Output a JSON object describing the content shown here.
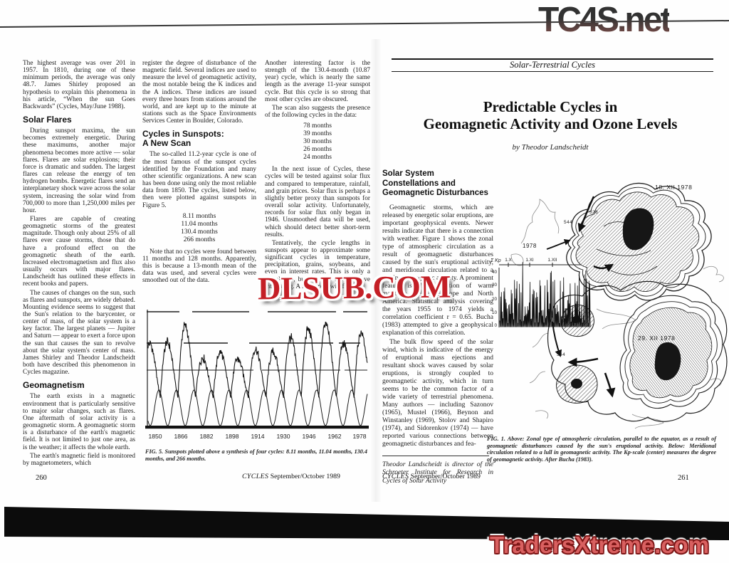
{
  "watermarks": {
    "tc4s": "TC4S.net",
    "dlsub": "DLSUB.COM",
    "traders": "TradersXtreme.com"
  },
  "leftPage": {
    "pageNumber": "260",
    "footerMag": "CYCLES",
    "footerRest": "September/October 1989",
    "col1": {
      "p1": "The highest average was over 201 in 1957. In 1810, during one of these minimum periods, the average was only 48.7. James Shirley proposed an hypothesis to explain this phenomena in his article, “When the sun Goes Backwards” (Cycles, May/June 1988).",
      "h1": "Solar Flares",
      "p2": "During sunspot maxima, the sun becomes extremely energetic. During these maximums, another major phenomena becomes more active — solar flares. Flares are solar explosions; their force is dramatic and sudden. The largest flares can release the energy of ten hydrogen bombs. Energetic flares send an interplanetary shock wave across the solar system, increasing the solar wind from 700,000 to more than 1,250,000 miles per hour.",
      "p3": "Flares are capable of creating geomagnetic storms of the greatest magnitude. Though only about 25% of all flares ever cause storms, those that do have a profound effect on the geomagnetic sheath of the earth. Increased electromagnetism and flux also usually occurs with major flares. Landscheidt has outlined these effects in recent books and papers.",
      "p4": "The causes of changes on the sun, such as flares and sunspots, are widely debated. Mounting evidence seems to suggest that the Sun's relation to the barycenter, or center of mass, of the solar system is a key factor. The largest planets — Jupiter and Saturn — appear to exert a force upon the sun that causes the sun to revolve about the solar system's center of mass. James Shirley and Theodor Landscheidt both have described this phenomenon in Cycles magazine.",
      "h2": "Geomagnetism",
      "p5": "The earth exists in a magnetic environment that is particularly sensitive to major solar changes, such as flares. One aftermath of solar activity is a geomagnetic storm. A geomagnetic storm is a disturbance of the earth's magnetic field. It is not limited to just one area, as is the weather; it affects the whole earth.",
      "p6": "The earth's magnetic field is monitored by magnetometers, which"
    },
    "col2": {
      "p1": "register the degree of disturbance of the magnetic field. Several indices are used to measure the level of geomagnetic activity, the most notable being the K indices and the A indices. These indices are issued every three hours from stations around the world, and are kept up to the minute at stations such as the Space Environments Services Center in Boulder, Colorado.",
      "h1a": "Cycles in Sunspots:",
      "h1b": "A New Scan",
      "p2": "The so-called 11.2-year cycle is one of the most famous of the sunspot cycles identified by the Foundation and many other scientific organizations. A new scan has been done using only the most reliable data from 1850. The cycles, listed below, then were plotted against sunspots in Figure 5.",
      "cycles": [
        "8.11 months",
        "11.04 months",
        "130.4 months",
        "266 months"
      ],
      "p3": "Note that no cycles were found between 11 months and 128 months. Apparently, this is because a 13-month mean of the data was used, and several cycles were smoothed out of the data."
    },
    "col3": {
      "p1": "Another interesting factor is the strength of the 130.4-month (10.87 year) cycle, which is nearly the same length as the average 11-year sunspot cycle. But this cycle is so strong that most other cycles are obscured.",
      "p2": "The scan also suggests the presence of the following cycles in the data:",
      "cycles": [
        "78 months",
        "39 months",
        "30 months",
        "26 months",
        "24 months"
      ],
      "p3": "In the next issue of Cycles, these cycles will be tested against solar flux and compared to temperature, rainfall, and grain prices. Solar flux is perhaps a slightly better proxy than sunspots for overall solar activity. Unfortunately, records for solar flux only began in 1946. Unsmoothed data will be used, which should detect better short-term results.",
      "p4": "Tentatively, the cycle lengths in sunspots appear to approximate some significant cycles in temperature, precipitation, grains, soybeans, and even in interest rates. This is only a correlation, but one that should prove interesting. A full report will follow."
    },
    "fig5": {
      "caption": "FIG. 5. Sunspots plotted above a synthesis of four cycles: 8.11 months, 11.04 months, 130.4 months, and 266 months.",
      "xTicks": [
        "1850",
        "1866",
        "1882",
        "1898",
        "1914",
        "1930",
        "1946",
        "1962",
        "1978"
      ]
    }
  },
  "rightPage": {
    "pageNumber": "261",
    "kicker": "Solar-Terrestrial Cycles",
    "titleLine1": "Predictable Cycles in",
    "titleLine2": "Geomagnetic Activity and Ozone Levels",
    "byline": "by Theodor Landscheidt",
    "footerMag": "CYCLES",
    "footerRest": "September/October 1989",
    "col1": {
      "h1a": "Solar System",
      "h1b": "Constellations and",
      "h1c": "Geomagnetic Disturbances",
      "p1": "Geomagnetic storms, which are released by energetic solar eruptions, are important geophysical events. Newer results indicate that there is a connection with weather. Figure 1 shows the zonal type of atmospheric circulation as a result of geomagnetic disturbances caused by the sun's eruptional activity, and meridional circulation related to a lull in geomagnetic activity. A prominent feature is the advection of warm maritime air over Europe and North America. Statistical analysis covering the years 1955 to 1974 yields a correlation coefficient r = 0.65. Bucha (1983) attempted to give a geophysical explanation of this correlation.",
      "p2": "The bulk flow speed of the solar wind, which is indicative of the energy of eruptional mass ejections and resultant shock waves caused by solar eruptions, is strongly coupled to geomagnetic activity, which in turn seems to be the common factor of a wide variety of terrestrial phenomena. Many authors — including Sazonov (1965), Mustel (1966), Beynon and Winstanley (1969), Stolov and Shapiro (1974), and Sidorenkov (1974) — have reported various connections between geomagnetic disturbances and fea-",
      "bio": "Theodor Landscheidt is director of the Schroeter Institute for Research in Cycles of Solar Activity"
    },
    "fig1": {
      "labelUpper": "18. XII 1978",
      "labelYear": "1978",
      "labelLower": "29. XII 1978",
      "kpLabel": "Σ Kp",
      "kpTicks": [
        "40",
        "30",
        "20",
        "10",
        "0"
      ],
      "kpDates": [
        "1.X",
        "1.XI",
        "1.XII"
      ],
      "contour1": "544",
      "contour2": "528",
      "caption": "FIG. 1. Above: Zonal type of atmospheric circulation, parallel to the equator, as a result of geomagnetic disturbances caused by the sun's eruptional activity. Below: Meridional circulation related to a lull in geomagnetic activity. The Kp-scale (center) measures the degree of geomagnetic activity. After Bucha (1983)."
    }
  }
}
